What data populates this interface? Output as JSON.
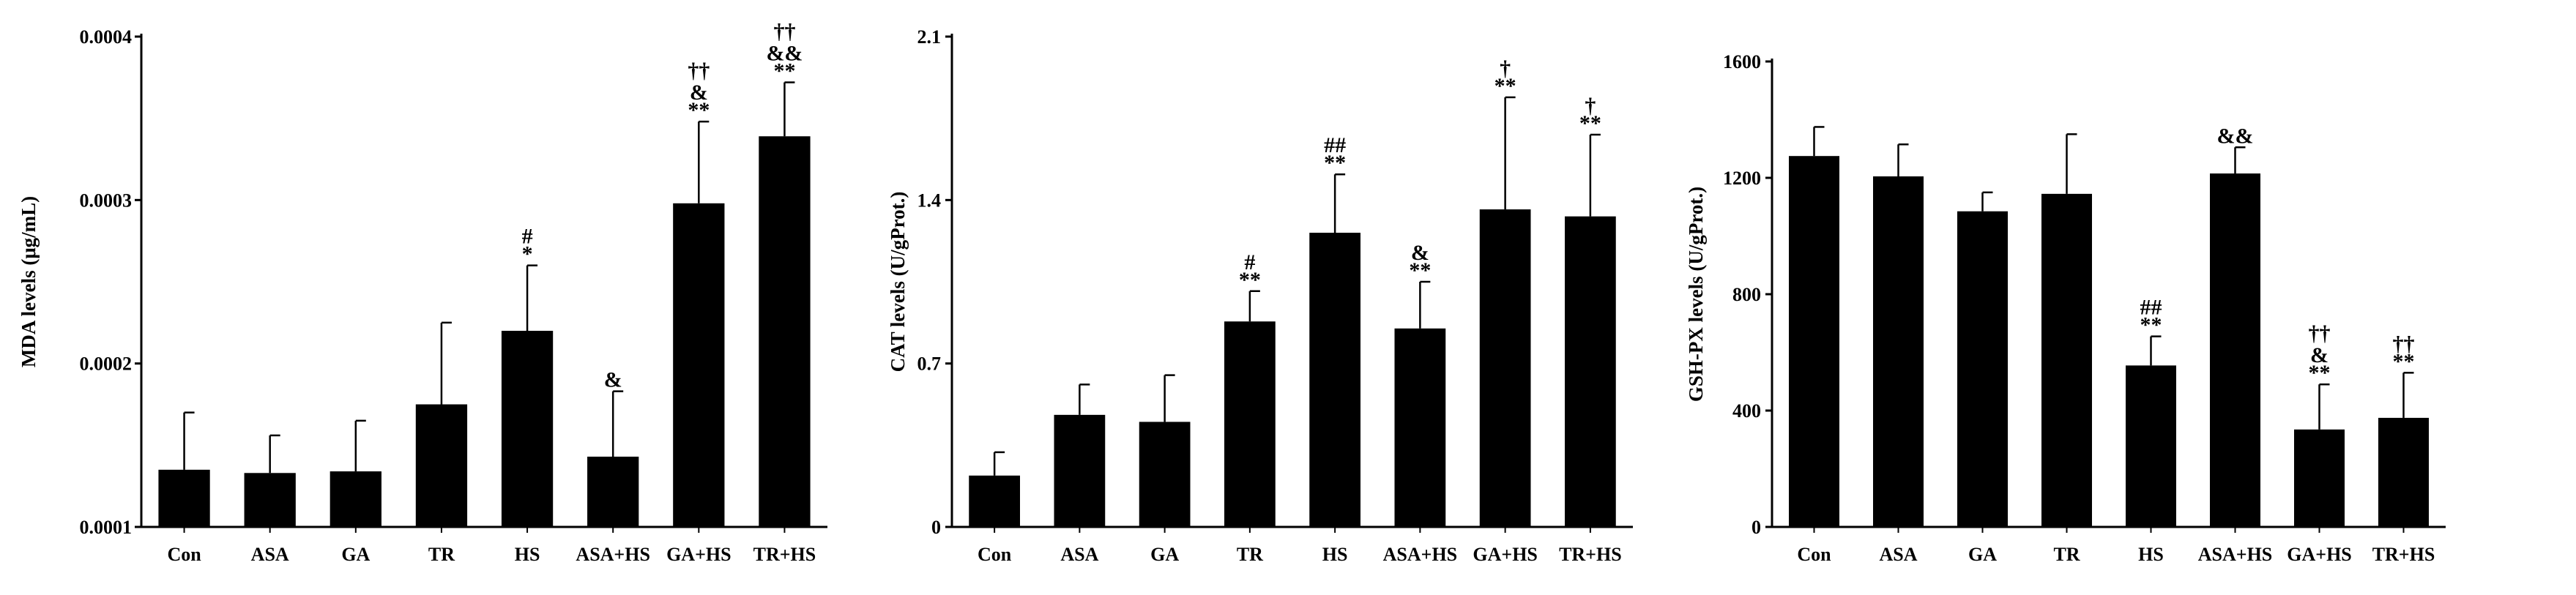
{
  "chart_data": [
    {
      "type": "bar",
      "ylabel": "MDA levels (μg/mL)",
      "ylim": [
        0.0001,
        0.0004
      ],
      "yticks": [
        0.0001,
        0.0002,
        0.0003,
        0.0004
      ],
      "ytick_labels": [
        "0.0001",
        "0.0002",
        "0.0003",
        "0.0004"
      ],
      "categories": [
        "Con",
        "ASA",
        "GA",
        "TR",
        "HS",
        "ASA+HS",
        "GA+HS",
        "TR+HS"
      ],
      "values": [
        0.000135,
        0.000133,
        0.000134,
        0.000175,
        0.00022,
        0.000143,
        0.000298,
        0.000339
      ],
      "errors": [
        3.5e-05,
        2.3e-05,
        3.1e-05,
        5e-05,
        4e-05,
        4e-05,
        5e-05,
        3.3e-05
      ],
      "annotations": [
        [],
        [],
        [],
        [],
        [
          "#",
          "*"
        ],
        [
          "&"
        ],
        [
          "††",
          "&",
          "**"
        ],
        [
          "††",
          "&&",
          "**"
        ]
      ],
      "grid": false,
      "color": "#000000"
    },
    {
      "type": "bar",
      "ylabel": "CAT levels (U/gProt.)",
      "ylim": [
        0,
        2.1
      ],
      "yticks": [
        0,
        0.7,
        1.4,
        2.1
      ],
      "ytick_labels": [
        "0",
        "0.7",
        "1.4",
        "2.1"
      ],
      "categories": [
        "Con",
        "ASA",
        "GA",
        "TR",
        "HS",
        "ASA+HS",
        "GA+HS",
        "TR+HS"
      ],
      "values": [
        0.22,
        0.48,
        0.45,
        0.88,
        1.26,
        0.85,
        1.36,
        1.33
      ],
      "errors": [
        0.1,
        0.13,
        0.2,
        0.13,
        0.25,
        0.2,
        0.48,
        0.35
      ],
      "annotations": [
        [],
        [],
        [],
        [
          "#",
          "**"
        ],
        [
          "##",
          "**"
        ],
        [
          "&",
          "**"
        ],
        [
          "†",
          "**"
        ],
        [
          "†",
          "**"
        ]
      ],
      "grid": false,
      "color": "#000000"
    },
    {
      "type": "bar",
      "ylabel": "GSH-PX levels (U/gProt.)",
      "ylim": [
        0,
        1600
      ],
      "yticks": [
        0,
        400,
        800,
        1200,
        1600
      ],
      "ytick_labels": [
        "0",
        "400",
        "800",
        "1200",
        "1600"
      ],
      "categories": [
        "Con",
        "ASA",
        "GA",
        "TR",
        "HS",
        "ASA+HS",
        "GA+HS",
        "TR+HS"
      ],
      "values": [
        1275,
        1205,
        1085,
        1145,
        555,
        1215,
        335,
        375
      ],
      "errors": [
        100,
        110,
        65,
        205,
        100,
        90,
        155,
        155
      ],
      "annotations": [
        [],
        [],
        [],
        [],
        [
          "##",
          "**"
        ],
        [
          "&&"
        ],
        [
          "††",
          "&",
          "**"
        ],
        [
          "††",
          "**"
        ]
      ],
      "grid": false,
      "color": "#000000"
    }
  ]
}
